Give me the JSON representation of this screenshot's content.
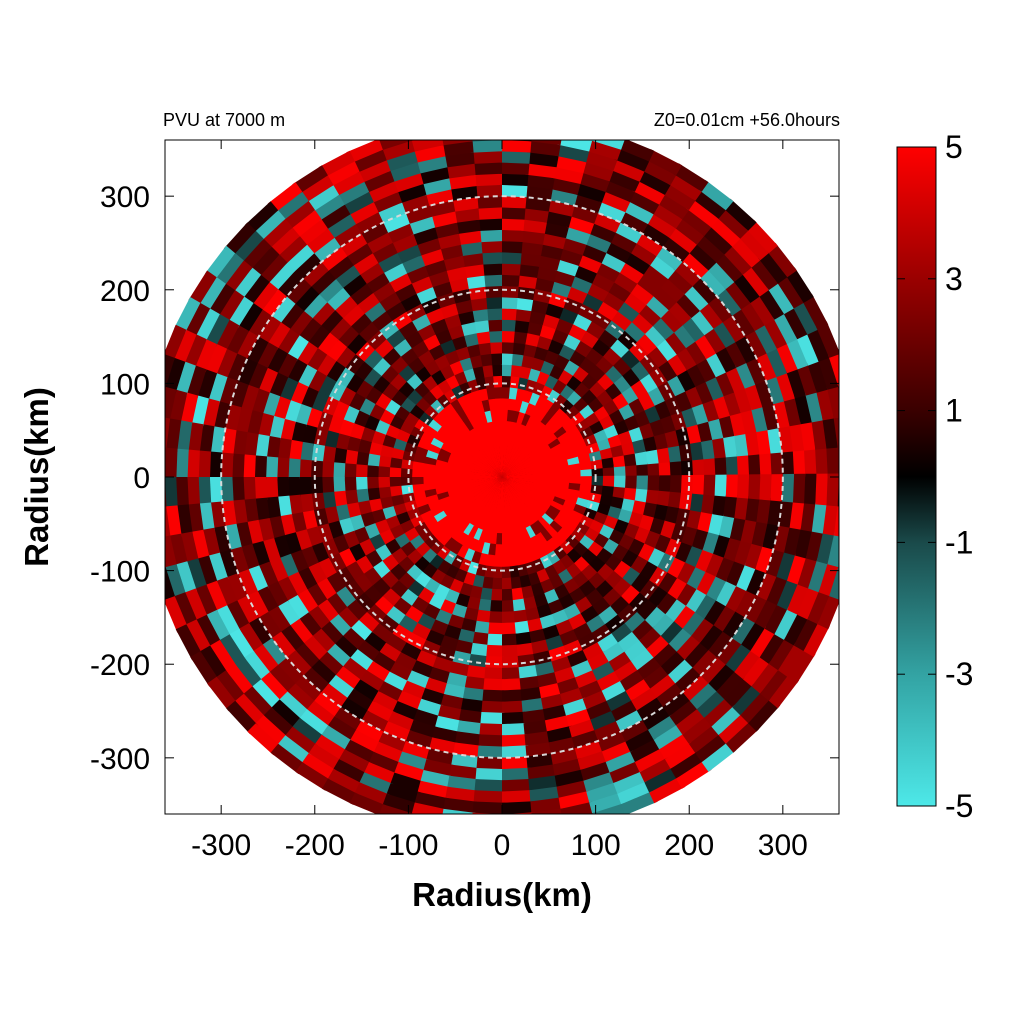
{
  "chart_data": {
    "type": "heatmap",
    "title_left": "PVU at  7000 m",
    "title_right": "Z0=0.01cm  +56.0hours",
    "xlabel": "Radius(km)",
    "ylabel": "Radius(km)",
    "xlim": [
      -360,
      360
    ],
    "ylim": [
      -360,
      360
    ],
    "x_ticks": [
      "-300",
      "-200",
      "-100",
      "0",
      "100",
      "200",
      "300"
    ],
    "x_tick_values": [
      -300,
      -200,
      -100,
      0,
      100,
      200,
      300
    ],
    "y_ticks": [
      "300",
      "200",
      "100",
      "0",
      "-100",
      "-200",
      "-300"
    ],
    "y_tick_values": [
      300,
      200,
      100,
      0,
      -100,
      -200,
      -300
    ],
    "field_domain_radius_km": 380,
    "reference_circles_km": [
      100,
      200,
      300
    ],
    "colorbar": {
      "min": -5,
      "max": 5,
      "tick_labels": [
        "5",
        "3",
        "1",
        "-1",
        "-3",
        "-5"
      ],
      "tick_values": [
        5,
        3,
        1,
        -1,
        -3,
        -5
      ],
      "color_stops": [
        {
          "value": -5,
          "color": "#4de8e8"
        },
        {
          "value": -3,
          "color": "#33a3a3"
        },
        {
          "value": -1,
          "color": "#1a4a4a"
        },
        {
          "value": 0,
          "color": "#000000"
        },
        {
          "value": 1,
          "color": "#3a0000"
        },
        {
          "value": 3,
          "color": "#9a0000"
        },
        {
          "value": 5,
          "color": "#ff0000"
        }
      ]
    },
    "grid": false
  }
}
